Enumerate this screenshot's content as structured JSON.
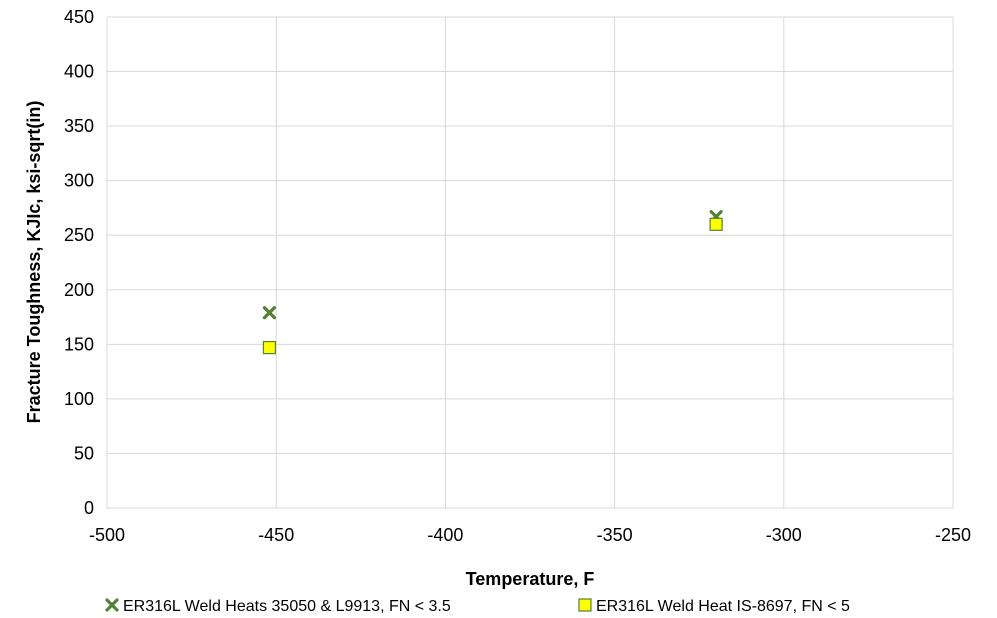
{
  "chart_data": {
    "type": "scatter",
    "title": "",
    "xlabel": "Temperature, F",
    "ylabel": "Fracture Toughness, KJIc, ksi-sqrt(in)",
    "xlim": [
      -500,
      -250
    ],
    "ylim": [
      0,
      450
    ],
    "x_ticks": [
      -500,
      -450,
      -400,
      -350,
      -300,
      -250
    ],
    "y_ticks": [
      0,
      50,
      100,
      150,
      200,
      250,
      300,
      350,
      400,
      450
    ],
    "grid": true,
    "legend_position": "bottom",
    "series": [
      {
        "name": "ER316L Weld Heats 35050 & L9913, FN < 3.5",
        "marker": "x",
        "color": "#548235",
        "points": [
          {
            "x": -452,
            "y": 179
          },
          {
            "x": -320,
            "y": 267
          }
        ]
      },
      {
        "name": "ER316L Weld Heat IS-8697, FN < 5",
        "marker": "square",
        "color": "#FFFF00",
        "edge_color": "#538135",
        "points": [
          {
            "x": -452,
            "y": 147
          },
          {
            "x": -320,
            "y": 260
          }
        ]
      }
    ]
  }
}
